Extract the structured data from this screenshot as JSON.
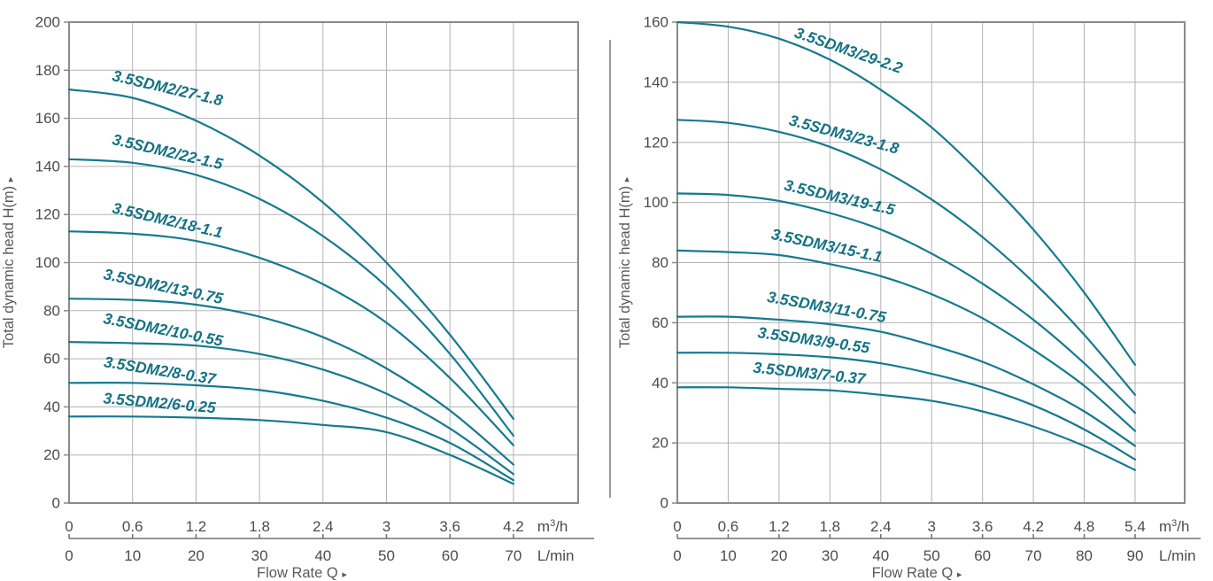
{
  "figure": {
    "kind": "pump-performance-curves",
    "divider_between_charts": true
  },
  "colors": {
    "curve": "#157a8d",
    "curve_label": "#137285",
    "grid": "#b3b3b3",
    "axis_box": "#8a8a8a",
    "tick_text": "#4c4c4c",
    "axis_title": "#5a5a5a",
    "secondary_axis": "#707070",
    "divider": "#9c9c9c",
    "background": "#ffffff"
  },
  "chart_data": [
    {
      "type": "line",
      "title": "",
      "ylabel": "Total dynamic head H(m)",
      "xlabel": "Flow Rate Q",
      "x_unit_primary": "m³/h",
      "x_unit_primary_parts": [
        "m",
        "3",
        "/h"
      ],
      "x_unit_secondary": "L/min",
      "ylim": [
        0,
        200
      ],
      "yticks": [
        0,
        20,
        40,
        60,
        80,
        100,
        120,
        140,
        160,
        180,
        200
      ],
      "xticks": [
        0,
        0.6,
        1.2,
        1.8,
        2.4,
        3,
        3.6,
        4.2
      ],
      "xtick_labels_primary": [
        "0",
        "0.6",
        "1.2",
        "1.8",
        "2.4",
        "3",
        "3.6",
        "4.2"
      ],
      "xtick_labels_secondary": [
        "0",
        "10",
        "20",
        "30",
        "40",
        "50",
        "60",
        "70"
      ],
      "grid": true,
      "legend": "labels-on-curves",
      "series": [
        {
          "name": "3.5SDM2/27-1.8",
          "x": [
            0,
            0.6,
            1.2,
            1.8,
            2.4,
            3,
            3.6,
            4.2
          ],
          "y": [
            172,
            168.5,
            159,
            144.5,
            125,
            100,
            70,
            35
          ],
          "label": {
            "q": 0.92,
            "h": 170.5,
            "angle": 13
          }
        },
        {
          "name": "3.5SDM2/22-1.5",
          "x": [
            0,
            0.6,
            1.2,
            1.8,
            2.4,
            3,
            3.6,
            4.2
          ],
          "y": [
            143,
            141.5,
            136.5,
            126.5,
            111,
            90,
            62,
            28
          ],
          "label": {
            "q": 0.92,
            "h": 144,
            "angle": 13
          }
        },
        {
          "name": "3.5SDM2/18-1.1",
          "x": [
            0,
            0.6,
            1.2,
            1.8,
            2.4,
            3,
            3.6,
            4.2
          ],
          "y": [
            113,
            112,
            109,
            102,
            91,
            75,
            52,
            24
          ],
          "label": {
            "q": 0.92,
            "h": 115.5,
            "angle": 13
          }
        },
        {
          "name": "3.5SDM2/13-0.75",
          "x": [
            0,
            0.6,
            1.2,
            1.8,
            2.4,
            3,
            3.6,
            4.2
          ],
          "y": [
            85,
            84.5,
            82.5,
            77.5,
            69,
            56,
            38.5,
            16
          ],
          "label": {
            "q": 0.88,
            "h": 88,
            "angle": 12
          }
        },
        {
          "name": "3.5SDM2/10-0.55",
          "x": [
            0,
            0.6,
            1.2,
            1.8,
            2.4,
            3,
            3.6,
            4.2
          ],
          "y": [
            67,
            66.5,
            65.5,
            62,
            55.5,
            45.5,
            31,
            12
          ],
          "label": {
            "q": 0.88,
            "h": 70,
            "angle": 11
          }
        },
        {
          "name": "3.5SDM2/8-0.37",
          "x": [
            0,
            0.6,
            1.2,
            1.8,
            2.4,
            3,
            3.6,
            4.2
          ],
          "y": [
            50,
            50,
            49,
            47,
            42.5,
            35.5,
            25,
            9.5
          ],
          "label": {
            "q": 0.85,
            "h": 53,
            "angle": 9
          }
        },
        {
          "name": "3.5SDM2/6-0.25",
          "x": [
            0,
            0.6,
            1.2,
            1.8,
            2.4,
            3,
            3.6,
            4.2
          ],
          "y": [
            36,
            36,
            35.5,
            34.5,
            32.5,
            29.5,
            20,
            8
          ],
          "label": {
            "q": 0.85,
            "h": 39.5,
            "angle": 5
          }
        }
      ]
    },
    {
      "type": "line",
      "title": "",
      "ylabel": "Total dynamic head H(m)",
      "xlabel": "Flow Rate Q",
      "x_unit_primary": "m³/h",
      "x_unit_primary_parts": [
        "m",
        "3",
        "/h"
      ],
      "x_unit_secondary": "L/min",
      "ylim": [
        0,
        160
      ],
      "yticks": [
        0,
        20,
        40,
        60,
        80,
        100,
        120,
        140,
        160
      ],
      "xticks": [
        0,
        0.6,
        1.2,
        1.8,
        2.4,
        3,
        3.6,
        4.2,
        4.8,
        5.4
      ],
      "xtick_labels_primary": [
        "0",
        "0.6",
        "1.2",
        "1.8",
        "2.4",
        "3",
        "3.6",
        "4.2",
        "4.8",
        "5.4"
      ],
      "xtick_labels_secondary": [
        "0",
        "10",
        "20",
        "30",
        "40",
        "50",
        "60",
        "70",
        "80",
        "90"
      ],
      "grid": true,
      "legend": "labels-on-curves",
      "series": [
        {
          "name": "3.5SDM3/29-2.2",
          "x": [
            0,
            0.6,
            1.2,
            1.8,
            2.4,
            3,
            3.6,
            4.2,
            4.8,
            5.4
          ],
          "y": [
            160,
            158.5,
            154.5,
            147.5,
            137.5,
            125,
            109,
            91,
            70,
            46
          ],
          "label": {
            "q": 2.0,
            "h": 149,
            "angle": 19
          }
        },
        {
          "name": "3.5SDM3/23-1.8",
          "x": [
            0,
            0.6,
            1.2,
            1.8,
            2.4,
            3,
            3.6,
            4.2,
            4.8,
            5.4
          ],
          "y": [
            127.5,
            126.5,
            123.5,
            118.5,
            111,
            101,
            88.5,
            73.5,
            56,
            36
          ],
          "label": {
            "q": 1.95,
            "h": 121,
            "angle": 15
          }
        },
        {
          "name": "3.5SDM3/19-1.5",
          "x": [
            0,
            0.6,
            1.2,
            1.8,
            2.4,
            3,
            3.6,
            4.2,
            4.8,
            5.4
          ],
          "y": [
            103,
            102.5,
            100.5,
            96.5,
            91,
            83,
            73,
            61,
            46.5,
            30
          ],
          "label": {
            "q": 1.9,
            "h": 100,
            "angle": 13
          }
        },
        {
          "name": "3.5SDM3/15-1.1",
          "x": [
            0,
            0.6,
            1.2,
            1.8,
            2.4,
            3,
            3.6,
            4.2,
            4.8,
            5.4
          ],
          "y": [
            84,
            83.5,
            82.5,
            79.5,
            75.5,
            69.5,
            61.5,
            51,
            39,
            24
          ],
          "label": {
            "q": 1.75,
            "h": 84,
            "angle": 12
          }
        },
        {
          "name": "3.5SDM3/11-0.75",
          "x": [
            0,
            0.6,
            1.2,
            1.8,
            2.4,
            3,
            3.6,
            4.2,
            4.8,
            5.4
          ],
          "y": [
            62,
            62,
            61,
            59.5,
            57,
            52.5,
            47,
            39.5,
            30.5,
            19
          ],
          "label": {
            "q": 1.75,
            "h": 63.5,
            "angle": 10
          }
        },
        {
          "name": "3.5SDM3/9-0.55",
          "x": [
            0,
            0.6,
            1.2,
            1.8,
            2.4,
            3,
            3.6,
            4.2,
            4.8,
            5.4
          ],
          "y": [
            50,
            50,
            49.5,
            48.5,
            46.5,
            43,
            38.5,
            32.5,
            24.5,
            14.5
          ],
          "label": {
            "q": 1.6,
            "h": 52.5,
            "angle": 8
          }
        },
        {
          "name": "3.5SDM3/7-0.37",
          "x": [
            0,
            0.6,
            1.2,
            1.8,
            2.4,
            3,
            3.6,
            4.2,
            4.8,
            5.4
          ],
          "y": [
            38.5,
            38.5,
            38,
            37.5,
            36,
            34,
            30.5,
            25.5,
            19,
            11
          ],
          "label": {
            "q": 1.55,
            "h": 41.5,
            "angle": 6
          }
        }
      ]
    }
  ]
}
